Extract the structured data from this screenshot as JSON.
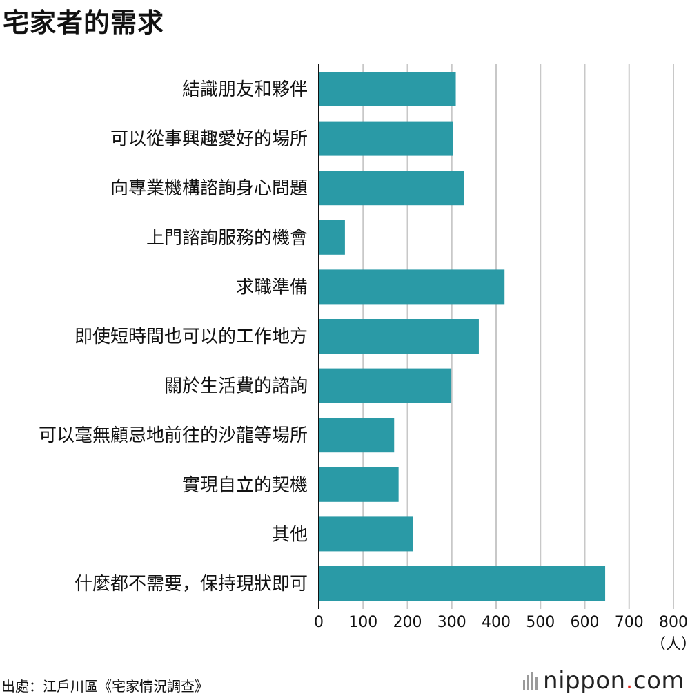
{
  "title": "宅家者的需求",
  "source": "出處：江戶川區《宅家情況調查》",
  "brand": {
    "name": "nippon",
    "dot": ".",
    "suffix": "com"
  },
  "colors": {
    "bar": "#2a9aa6",
    "grid": "#c8c8c8",
    "axis": "#111111"
  },
  "chart_data": {
    "type": "bar",
    "orientation": "horizontal",
    "categories": [
      "結識朋友和夥伴",
      "可以從事興趣愛好的場所",
      "向專業機構諮詢身心問題",
      "上門諮詢服務的機會",
      "求職準備",
      "即使短時間也可以的工作地方",
      "關於生活費的諮詢",
      "可以毫無顧忌地前往的沙龍等場所",
      "實現自立的契機",
      "其他",
      "什麼都不需要，保持現狀即可"
    ],
    "values": [
      309,
      302,
      328,
      59,
      419,
      361,
      299,
      170,
      180,
      212,
      646
    ],
    "xlim": [
      0,
      800
    ],
    "xticks": [
      "0",
      "100",
      "200",
      "300",
      "400",
      "500",
      "600",
      "700",
      "800"
    ],
    "unit": "（人）",
    "grid": true
  }
}
